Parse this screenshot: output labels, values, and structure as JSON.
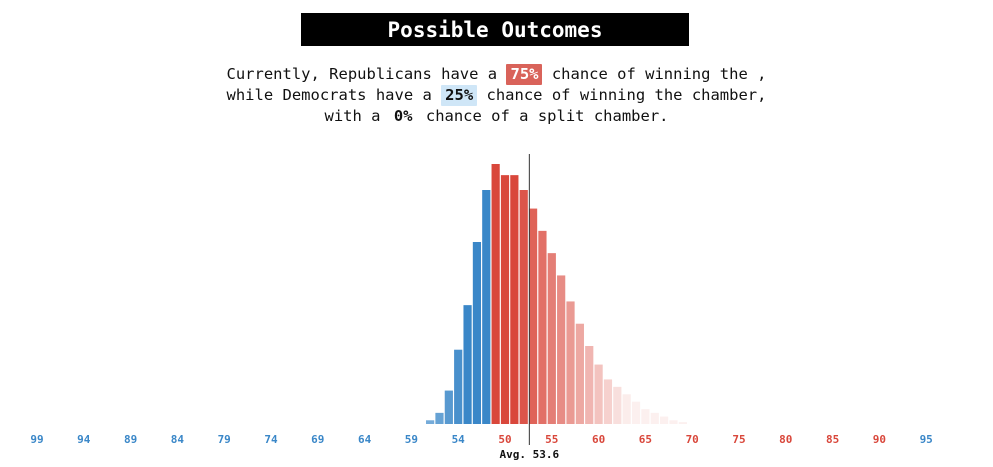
{
  "title": "Possible Outcomes",
  "summary": {
    "line1_pre": "Currently, Republicans have a",
    "rep_pct": "75%",
    "line1_post": "chance of winning the ,",
    "line2_pre": "while Democrats have a",
    "dem_pct": "25%",
    "line2_post": "chance of winning the chamber,",
    "line3_pre": "with a",
    "split_pct": "0%",
    "line3_post": "chance of a split chamber."
  },
  "colors": {
    "republican": "#d9473b",
    "democrat": "#3a87c8",
    "avg_line": "#333333"
  },
  "chart_data": {
    "type": "bar",
    "x": [
      99,
      98,
      97,
      96,
      95,
      94,
      93,
      92,
      91,
      90,
      89,
      88,
      87,
      86,
      85,
      84,
      83,
      82,
      81,
      80,
      79,
      78,
      77,
      76,
      75,
      74,
      73,
      72,
      71,
      70,
      69,
      68,
      67,
      66,
      65,
      64,
      63,
      62,
      61,
      60,
      59,
      58,
      57,
      56,
      55,
      54,
      53,
      52,
      51,
      50,
      51,
      52,
      53,
      54,
      55,
      56,
      57,
      58,
      59,
      60,
      61,
      62,
      63,
      64,
      65,
      66,
      67,
      68,
      69,
      70,
      71,
      72,
      73,
      74,
      75,
      76,
      77,
      78,
      79,
      80,
      81,
      82,
      83,
      84,
      85,
      86,
      87,
      88,
      89,
      90,
      91,
      92,
      93,
      94,
      95
    ],
    "party": [
      "D",
      "D",
      "D",
      "D",
      "D",
      "D",
      "D",
      "D",
      "D",
      "D",
      "D",
      "D",
      "D",
      "D",
      "D",
      "D",
      "D",
      "D",
      "D",
      "D",
      "D",
      "D",
      "D",
      "D",
      "D",
      "D",
      "D",
      "D",
      "D",
      "D",
      "D",
      "D",
      "D",
      "D",
      "D",
      "D",
      "D",
      "D",
      "D",
      "D",
      "D",
      "D",
      "D",
      "D",
      "D",
      "D",
      "D",
      "D",
      "D",
      "R",
      "R",
      "R",
      "R",
      "R",
      "R",
      "R",
      "R",
      "R",
      "R",
      "R",
      "R",
      "R",
      "R",
      "R",
      "R",
      "R",
      "R",
      "R",
      "R",
      "R",
      "R",
      "R",
      "R",
      "R",
      "R",
      "R",
      "R",
      "R",
      "R",
      "R",
      "R",
      "R",
      "R",
      "R",
      "R",
      "R",
      "R",
      "R",
      "R",
      "R",
      "R",
      "R",
      "R",
      "R",
      "R"
    ],
    "values": [
      0,
      0,
      0,
      0,
      0,
      0,
      0,
      0,
      0,
      0,
      0,
      0,
      0,
      0,
      0,
      0,
      0,
      0,
      0,
      0,
      0,
      0,
      0,
      0,
      0,
      0,
      0,
      0,
      0,
      0,
      0,
      0,
      0,
      0,
      0,
      0,
      0,
      0,
      0,
      0,
      0,
      0,
      0.1,
      0.3,
      0.9,
      2.0,
      3.2,
      4.9,
      6.3,
      7.0,
      6.7,
      6.7,
      6.3,
      5.8,
      5.2,
      4.6,
      4.0,
      3.3,
      2.7,
      2.1,
      1.6,
      1.2,
      1.0,
      0.8,
      0.6,
      0.4,
      0.3,
      0.2,
      0.1,
      0.05,
      0,
      0,
      0,
      0,
      0,
      0,
      0,
      0,
      0,
      0,
      0,
      0,
      0,
      0,
      0,
      0,
      0,
      0,
      0,
      0,
      0,
      0,
      0,
      0,
      0
    ],
    "tick_labels": [
      "99",
      "94",
      "89",
      "84",
      "79",
      "74",
      "69",
      "64",
      "59",
      "54",
      "50",
      "55",
      "60",
      "65",
      "70",
      "75",
      "80",
      "85",
      "90",
      "95"
    ],
    "average": 53.6,
    "average_label": "Avg. 53.6",
    "grid": false,
    "legend": "none"
  }
}
